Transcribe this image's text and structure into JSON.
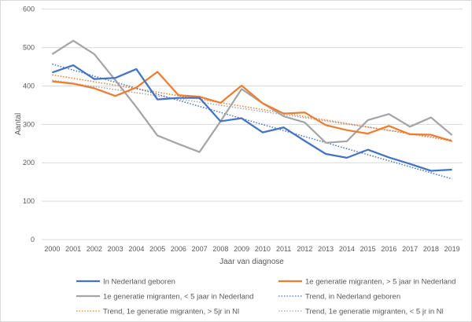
{
  "chart_data": {
    "type": "line",
    "title": "",
    "xlabel": "Jaar van diagnose",
    "ylabel": "Aantal",
    "ylim": [
      0,
      600
    ],
    "yticks": [
      0,
      100,
      200,
      300,
      400,
      500,
      600
    ],
    "grid": true,
    "legend_position": "bottom",
    "x": [
      "2000",
      "2001",
      "2002",
      "2003",
      "2004",
      "2005",
      "2006",
      "2007",
      "2008",
      "2009",
      "2010",
      "2011",
      "2012",
      "2013",
      "2014",
      "2015",
      "2016",
      "2017",
      "2018",
      "2019"
    ],
    "series": [
      {
        "name": "In Nederland geboren",
        "color": "#4472c4",
        "style": "solid",
        "values": [
          435,
          454,
          418,
          421,
          444,
          365,
          369,
          369,
          308,
          316,
          279,
          292,
          257,
          223,
          213,
          234,
          214,
          197,
          179,
          182
        ]
      },
      {
        "name": "1e generatie migranten, > 5 jaar in Nederland",
        "color": "#ed7d31",
        "style": "solid",
        "values": [
          412,
          406,
          394,
          374,
          396,
          437,
          376,
          372,
          356,
          401,
          355,
          328,
          331,
          298,
          285,
          276,
          296,
          274,
          273,
          256
        ]
      },
      {
        "name": "1e generatie migranten, < 5 jaar in Nederland",
        "color": "#a5a5a5",
        "style": "solid",
        "values": [
          483,
          518,
          483,
          415,
          345,
          271,
          249,
          228,
          308,
          392,
          355,
          321,
          305,
          252,
          256,
          311,
          327,
          294,
          318,
          272
        ]
      },
      {
        "name": "Trend, in Nederland geboren",
        "color": "#4472c4",
        "style": "dotted",
        "trend_of": 0,
        "values": [
          457,
          158
        ]
      },
      {
        "name": "Trend, 1e generatie migranten, > 5jr in Nl",
        "color": "#ed7d31",
        "style": "dotted",
        "trend_of": 1,
        "values": [
          429,
          257
        ]
      },
      {
        "name": "Trend, 1e generatie migranten, < 5 jr in Nl",
        "color": "#a5a5a5",
        "style": "dotted",
        "trend_of": 2,
        "values": [
          415,
          260
        ]
      }
    ],
    "legend": [
      {
        "label": "In Nederland geboren",
        "series": 0
      },
      {
        "label": "1e generatie migranten, > 5 jaar in Nederland",
        "series": 1
      },
      {
        "label": "1e generatie migranten, < 5 jaar in Nederland",
        "series": 2
      },
      {
        "label": "Trend, in Nederland geboren",
        "series": 3
      },
      {
        "label": "Trend, 1e generatie migranten, > 5jr in Nl",
        "series": 4
      },
      {
        "label": "Trend, 1e generatie migranten, < 5 jr in Nl",
        "series": 5
      }
    ]
  }
}
